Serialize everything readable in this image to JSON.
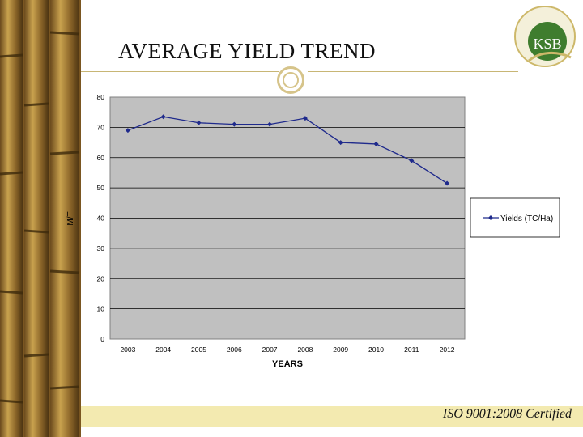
{
  "slide": {
    "title": "AVERAGE YIELD TREND",
    "footer": "ISO 9001:2008 Certified",
    "logo_text": "KSB"
  },
  "colors": {
    "plot_background": "#c0c0c0",
    "series_line": "#1f2a8c",
    "footer_band": "#f3eab0",
    "accent_gold": "#d6c48a"
  },
  "icons": [
    "ksb-logo-icon",
    "decorative-ring-icon"
  ],
  "chart_data": {
    "type": "line",
    "categories": [
      "2003",
      "2004",
      "2005",
      "2006",
      "2007",
      "2008",
      "2009",
      "2010",
      "2011",
      "2012"
    ],
    "series": [
      {
        "name": "Yields (TC/Ha)",
        "values": [
          69,
          73.5,
          71.5,
          71,
          71,
          73,
          65,
          64.5,
          59,
          51.5
        ]
      }
    ],
    "xlabel": "YEARS",
    "ylabel": "M/T",
    "ylim": [
      0,
      80
    ],
    "yticks": [
      "0",
      "10",
      "20",
      "30",
      "40",
      "50",
      "60",
      "70",
      "80"
    ],
    "grid": true,
    "legend": "right"
  }
}
